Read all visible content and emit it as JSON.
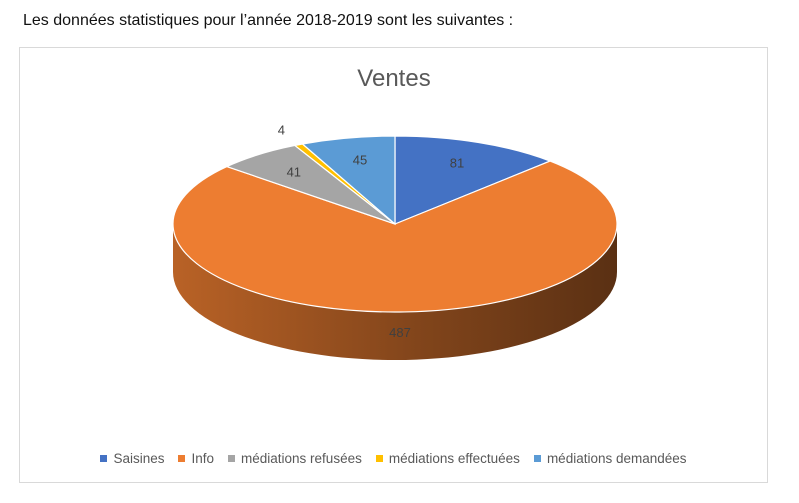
{
  "page": {
    "intro_text": "Les données statistiques pour l’année 2018-2019 sont les suivantes :"
  },
  "chart_data": {
    "type": "pie",
    "variant": "3d",
    "title": "Ventes",
    "categories": [
      "Saisines",
      "Info",
      "médiations refusées",
      "médiations effectuées",
      "médiations demandées"
    ],
    "values": [
      81,
      487,
      41,
      4,
      45
    ],
    "colors": [
      "#4472C4",
      "#ED7D31",
      "#A5A5A5",
      "#FFC000",
      "#5B9BD5"
    ],
    "legend_position": "bottom"
  }
}
